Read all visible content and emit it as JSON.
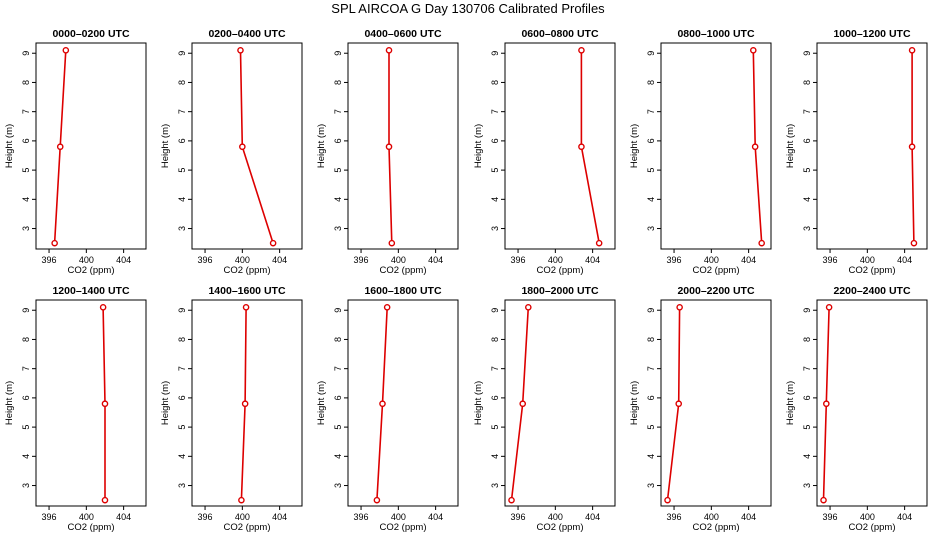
{
  "figure": {
    "title": "SPL AIRCOA G  Day 130706  Calibrated Profiles"
  },
  "chart_data": [
    {
      "type": "line",
      "title": "0000–0200 UTC",
      "xlabel": "CO2 (ppm)",
      "ylabel": "Height (m)",
      "x": [
        396.6,
        397.2,
        397.8
      ],
      "y": [
        2.5,
        5.8,
        9.1
      ],
      "xlim": [
        394.6,
        406.4
      ],
      "ylim": [
        2.3,
        9.35
      ],
      "xticks": [
        "396",
        "400",
        "404"
      ],
      "yticks": [
        "3",
        "4",
        "5",
        "6",
        "7",
        "8",
        "9"
      ]
    },
    {
      "type": "line",
      "title": "0200–0400 UTC",
      "xlabel": "CO2 (ppm)",
      "ylabel": "Height (m)",
      "x": [
        403.3,
        400.0,
        399.8
      ],
      "y": [
        2.5,
        5.8,
        9.1
      ],
      "xlim": [
        394.6,
        406.4
      ],
      "ylim": [
        2.3,
        9.35
      ],
      "xticks": [
        "396",
        "400",
        "404"
      ],
      "yticks": [
        "3",
        "4",
        "5",
        "6",
        "7",
        "8",
        "9"
      ]
    },
    {
      "type": "line",
      "title": "0400–0600 UTC",
      "xlabel": "CO2 (ppm)",
      "ylabel": "Height (m)",
      "x": [
        399.3,
        399.0,
        399.0
      ],
      "y": [
        2.5,
        5.8,
        9.1
      ],
      "xlim": [
        394.6,
        406.4
      ],
      "ylim": [
        2.3,
        9.35
      ],
      "xticks": [
        "396",
        "400",
        "404"
      ],
      "yticks": [
        "3",
        "4",
        "5",
        "6",
        "7",
        "8",
        "9"
      ]
    },
    {
      "type": "line",
      "title": "0600–0800 UTC",
      "xlabel": "CO2 (ppm)",
      "ylabel": "Height (m)",
      "x": [
        404.7,
        402.8,
        402.8
      ],
      "y": [
        2.5,
        5.8,
        9.1
      ],
      "xlim": [
        394.6,
        406.4
      ],
      "ylim": [
        2.3,
        9.35
      ],
      "xticks": [
        "396",
        "400",
        "404"
      ],
      "yticks": [
        "3",
        "4",
        "5",
        "6",
        "7",
        "8",
        "9"
      ]
    },
    {
      "type": "line",
      "title": "0800–1000 UTC",
      "xlabel": "CO2 (ppm)",
      "ylabel": "Height (m)",
      "x": [
        405.4,
        404.7,
        404.5
      ],
      "y": [
        2.5,
        5.8,
        9.1
      ],
      "xlim": [
        394.6,
        406.4
      ],
      "ylim": [
        2.3,
        9.35
      ],
      "xticks": [
        "396",
        "400",
        "404"
      ],
      "yticks": [
        "3",
        "4",
        "5",
        "6",
        "7",
        "8",
        "9"
      ]
    },
    {
      "type": "line",
      "title": "1000–1200 UTC",
      "xlabel": "CO2 (ppm)",
      "ylabel": "Height (m)",
      "x": [
        405.0,
        404.8,
        404.8
      ],
      "y": [
        2.5,
        5.8,
        9.1
      ],
      "xlim": [
        394.6,
        406.4
      ],
      "ylim": [
        2.3,
        9.35
      ],
      "xticks": [
        "396",
        "400",
        "404"
      ],
      "yticks": [
        "3",
        "4",
        "5",
        "6",
        "7",
        "8",
        "9"
      ]
    },
    {
      "type": "line",
      "title": "1200–1400 UTC",
      "xlabel": "CO2 (ppm)",
      "ylabel": "Height (m)",
      "x": [
        402.0,
        402.0,
        401.8
      ],
      "y": [
        2.5,
        5.8,
        9.1
      ],
      "xlim": [
        394.6,
        406.4
      ],
      "ylim": [
        2.3,
        9.35
      ],
      "xticks": [
        "396",
        "400",
        "404"
      ],
      "yticks": [
        "3",
        "4",
        "5",
        "6",
        "7",
        "8",
        "9"
      ]
    },
    {
      "type": "line",
      "title": "1400–1600 UTC",
      "xlabel": "CO2 (ppm)",
      "ylabel": "Height (m)",
      "x": [
        399.9,
        400.3,
        400.4
      ],
      "y": [
        2.5,
        5.8,
        9.1
      ],
      "xlim": [
        394.6,
        406.4
      ],
      "ylim": [
        2.3,
        9.35
      ],
      "xticks": [
        "396",
        "400",
        "404"
      ],
      "yticks": [
        "3",
        "4",
        "5",
        "6",
        "7",
        "8",
        "9"
      ]
    },
    {
      "type": "line",
      "title": "1600–1800 UTC",
      "xlabel": "CO2 (ppm)",
      "ylabel": "Height (m)",
      "x": [
        397.7,
        398.3,
        398.8
      ],
      "y": [
        2.5,
        5.8,
        9.1
      ],
      "xlim": [
        394.6,
        406.4
      ],
      "ylim": [
        2.3,
        9.35
      ],
      "xticks": [
        "396",
        "400",
        "404"
      ],
      "yticks": [
        "3",
        "4",
        "5",
        "6",
        "7",
        "8",
        "9"
      ]
    },
    {
      "type": "line",
      "title": "1800–2000 UTC",
      "xlabel": "CO2 (ppm)",
      "ylabel": "Height (m)",
      "x": [
        395.3,
        396.5,
        397.1
      ],
      "y": [
        2.5,
        5.8,
        9.1
      ],
      "xlim": [
        394.6,
        406.4
      ],
      "ylim": [
        2.3,
        9.35
      ],
      "xticks": [
        "396",
        "400",
        "404"
      ],
      "yticks": [
        "3",
        "4",
        "5",
        "6",
        "7",
        "8",
        "9"
      ]
    },
    {
      "type": "line",
      "title": "2000–2200 UTC",
      "xlabel": "CO2 (ppm)",
      "ylabel": "Height (m)",
      "x": [
        395.3,
        396.5,
        396.6
      ],
      "y": [
        2.5,
        5.8,
        9.1
      ],
      "xlim": [
        394.6,
        406.4
      ],
      "ylim": [
        2.3,
        9.35
      ],
      "xticks": [
        "396",
        "400",
        "404"
      ],
      "yticks": [
        "3",
        "4",
        "5",
        "6",
        "7",
        "8",
        "9"
      ]
    },
    {
      "type": "line",
      "title": "2200–2400 UTC",
      "xlabel": "CO2 (ppm)",
      "ylabel": "Height (m)",
      "x": [
        395.3,
        395.6,
        395.9
      ],
      "y": [
        2.5,
        5.8,
        9.1
      ],
      "xlim": [
        394.6,
        406.4
      ],
      "ylim": [
        2.3,
        9.35
      ],
      "xticks": [
        "396",
        "400",
        "404"
      ],
      "yticks": [
        "3",
        "4",
        "5",
        "6",
        "7",
        "8",
        "9"
      ]
    }
  ],
  "style": {
    "line_color": "#dd0000",
    "marker_color": "#dd0000",
    "axis_color": "#000000"
  }
}
